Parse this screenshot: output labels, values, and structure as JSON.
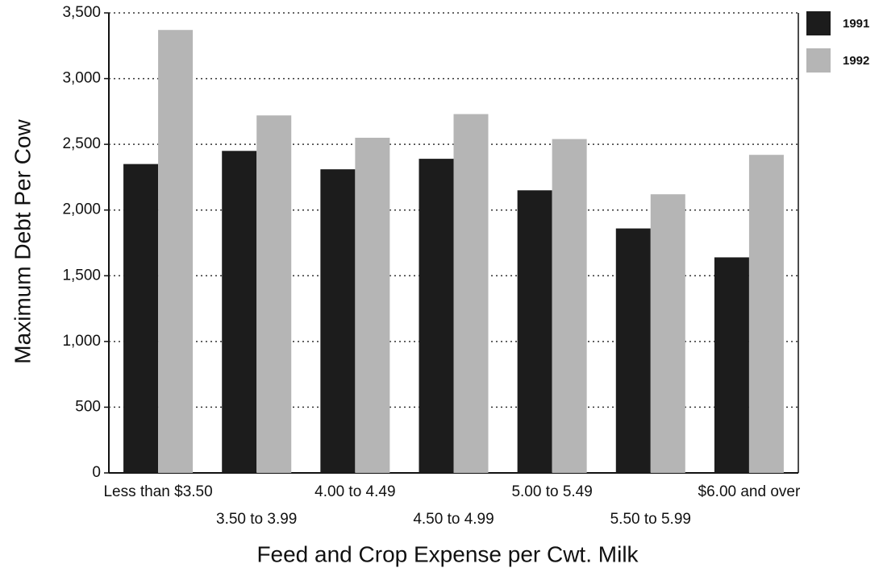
{
  "chart_data": {
    "type": "bar",
    "x_label": "Feed and Crop Expense per Cwt. Milk",
    "y_label": "Maximum Debt Per Cow",
    "categories": [
      "Less than $3.50",
      "3.50 to 3.99",
      "4.00 to 4.49",
      "4.50 to 4.99",
      "5.00 to 5.49",
      "5.50 to 5.99",
      "$6.00 and over"
    ],
    "series": [
      {
        "name": "1991",
        "color": "#1c1c1c",
        "values": [
          2350,
          2450,
          2310,
          2390,
          2150,
          1860,
          1640
        ]
      },
      {
        "name": "1992",
        "color": "#b5b5b5",
        "values": [
          3370,
          2720,
          2550,
          2730,
          2540,
          2120,
          2420
        ]
      }
    ],
    "ylim": [
      0,
      3500
    ],
    "yticks": [
      0,
      500,
      {
        "value": 1000,
        "label": "1,000"
      },
      {
        "value": 1500,
        "label": "1,500"
      },
      {
        "value": 2000,
        "label": "2,000"
      },
      {
        "value": 2500,
        "label": "2,500"
      },
      {
        "value": 3000,
        "label": "3,000"
      },
      {
        "value": 3500,
        "label": "3,500"
      }
    ],
    "grid": true,
    "legend": "top-right"
  }
}
